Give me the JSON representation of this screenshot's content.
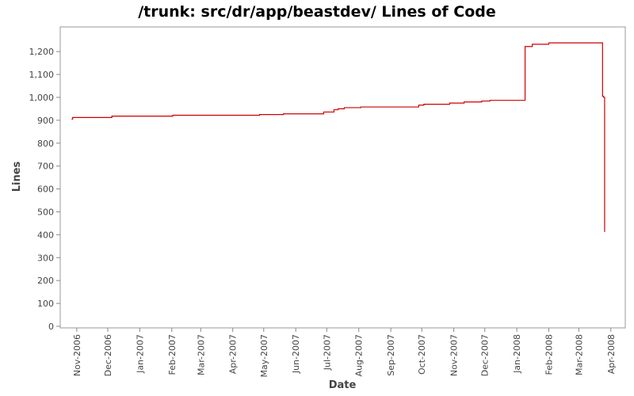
{
  "chart_data": {
    "type": "line",
    "title": "/trunk: src/dr/app/beastdev/ Lines of Code",
    "xlabel": "Date",
    "ylabel": "Lines",
    "ylim": [
      0,
      1280
    ],
    "xlim": [
      "2006-10-16",
      "2008-04-15"
    ],
    "grid": false,
    "legend": "none",
    "yticks": [
      0,
      100,
      200,
      300,
      400,
      500,
      600,
      700,
      800,
      900,
      1000,
      1100,
      1200
    ],
    "ytick_labels": [
      "0",
      "100",
      "200",
      "300",
      "400",
      "500",
      "600",
      "700",
      "800",
      "900",
      "1,000",
      "1,100",
      "1,200"
    ],
    "xticks": [
      "2006-11-01",
      "2006-12-01",
      "2007-01-01",
      "2007-02-01",
      "2007-03-01",
      "2007-04-01",
      "2007-05-01",
      "2007-06-01",
      "2007-07-01",
      "2007-08-01",
      "2007-09-01",
      "2007-10-01",
      "2007-11-01",
      "2007-12-01",
      "2008-01-01",
      "2008-02-01",
      "2008-03-01",
      "2008-04-01"
    ],
    "xtick_labels": [
      "Nov-2006",
      "Dec-2006",
      "Jan-2007",
      "Feb-2007",
      "Mar-2007",
      "Apr-2007",
      "May-2007",
      "Jun-2007",
      "Jul-2007",
      "Aug-2007",
      "Sep-2007",
      "Oct-2007",
      "Nov-2007",
      "Dec-2007",
      "Jan-2008",
      "Feb-2008",
      "Mar-2008",
      "Apr-2008"
    ],
    "series": [
      {
        "color": "#cc0000",
        "step": true,
        "points": [
          [
            "2006-10-27",
            905
          ],
          [
            "2006-10-28",
            912
          ],
          [
            "2006-12-05",
            918
          ],
          [
            "2007-02-02",
            922
          ],
          [
            "2007-04-27",
            925
          ],
          [
            "2007-05-20",
            928
          ],
          [
            "2007-06-28",
            936
          ],
          [
            "2007-07-08",
            946
          ],
          [
            "2007-07-12",
            950
          ],
          [
            "2007-07-18",
            955
          ],
          [
            "2007-08-03",
            958
          ],
          [
            "2007-09-28",
            966
          ],
          [
            "2007-10-03",
            970
          ],
          [
            "2007-10-28",
            975
          ],
          [
            "2007-11-11",
            980
          ],
          [
            "2007-11-28",
            984
          ],
          [
            "2007-12-06",
            987
          ],
          [
            "2008-01-09",
            1222
          ],
          [
            "2008-01-16",
            1232
          ],
          [
            "2008-02-01",
            1238
          ],
          [
            "2008-03-24",
            1005
          ],
          [
            "2008-03-25",
            1000
          ],
          [
            "2008-03-26",
            412
          ]
        ]
      }
    ]
  }
}
